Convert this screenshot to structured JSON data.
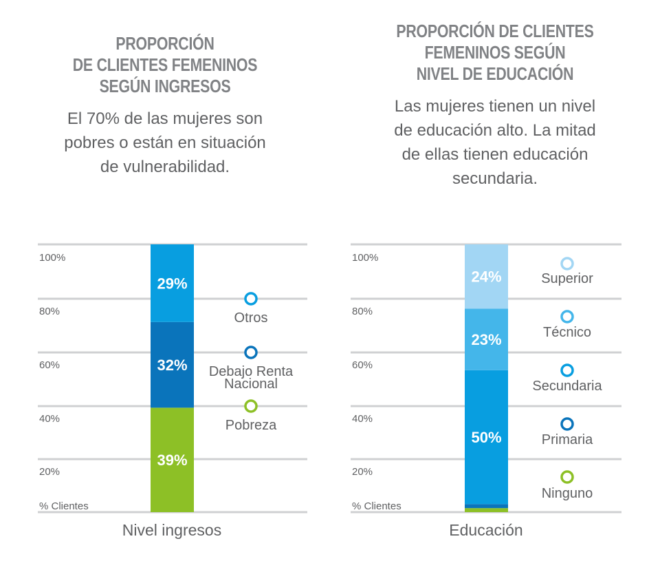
{
  "charts": [
    {
      "title_lines": [
        "PROPORCIÓN",
        "DE CLIENTES FEMENINOS",
        "SEGÚN INGRESOS"
      ],
      "subtitle_lines": [
        "El 70% de las mujeres son",
        "pobres o están en situación",
        "de vulnerabilidad."
      ]
    },
    {
      "title_lines": [
        "PROPORCIÓN DE CLIENTES",
        "FEMENINOS SEGÚN",
        "NIVEL DE EDUCACIÓN"
      ],
      "subtitle_lines": [
        "Las mujeres tienen un nivel",
        "de educación alto. La mitad",
        "de ellas tienen educación",
        "secundaria."
      ]
    }
  ],
  "chart_data": [
    {
      "type": "bar",
      "stacked": true,
      "xlabel": "Nivel ingresos",
      "ylabel": "% Clientes",
      "ytick_labels": [
        "100%",
        "80%",
        "60%",
        "40%",
        "20%"
      ],
      "ylim": [
        0,
        100
      ],
      "segments": [
        {
          "name": "Pobreza",
          "value": 39,
          "label": "39%",
          "color": "#8dc026"
        },
        {
          "name": "Debajo Renta Nacional",
          "value": 32,
          "label": "32%",
          "color": "#0a74bb"
        },
        {
          "name": "Otros",
          "value": 29,
          "label": "29%",
          "color": "#089ee0"
        }
      ],
      "legend": [
        {
          "lines": [
            "Otros"
          ],
          "color": "#089ee0"
        },
        {
          "lines": [
            "Debajo Renta",
            "Nacional"
          ],
          "color": "#0a74bb"
        },
        {
          "lines": [
            "Pobreza"
          ],
          "color": "#8dc026"
        }
      ]
    },
    {
      "type": "bar",
      "stacked": true,
      "xlabel": "Educación",
      "ylabel": "% Clientes",
      "ytick_labels": [
        "100%",
        "80%",
        "60%",
        "40%",
        "20%"
      ],
      "ylim": [
        0,
        100
      ],
      "segments": [
        {
          "name": "Ninguno",
          "value": 1.5,
          "label": "",
          "color": "#8dc026"
        },
        {
          "name": "Primaria",
          "value": 1.5,
          "label": "",
          "color": "#0a74bb"
        },
        {
          "name": "Secundaria",
          "value": 50,
          "label": "50%",
          "color": "#089ee0"
        },
        {
          "name": "Técnico",
          "value": 23,
          "label": "23%",
          "color": "#44b6ea"
        },
        {
          "name": "Superior",
          "value": 24,
          "label": "24%",
          "color": "#a2d6f4"
        }
      ],
      "legend": [
        {
          "lines": [
            "Superior"
          ],
          "color": "#a2d6f4"
        },
        {
          "lines": [
            "Técnico"
          ],
          "color": "#44b6ea"
        },
        {
          "lines": [
            "Secundaria"
          ],
          "color": "#089ee0"
        },
        {
          "lines": [
            "Primaria"
          ],
          "color": "#0a74bb"
        },
        {
          "lines": [
            "Ninguno"
          ],
          "color": "#8dc026"
        }
      ]
    }
  ]
}
